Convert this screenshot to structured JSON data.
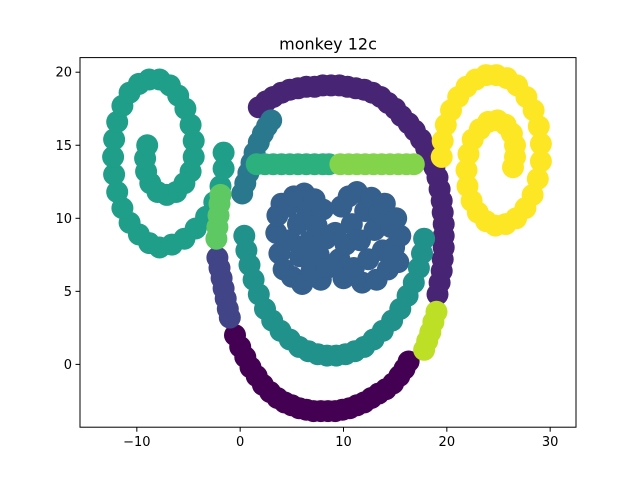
{
  "chart_data": {
    "type": "scatter",
    "title": "monkey 12c",
    "xlabel": "",
    "ylabel": "",
    "xlim": [
      -15.5,
      32.5
    ],
    "ylim": [
      -4.3,
      21.0
    ],
    "xticks": [
      -10,
      0,
      10,
      20,
      30
    ],
    "xtick_labels": [
      "−10",
      "0",
      "10",
      "20",
      "30"
    ],
    "yticks": [
      0,
      5,
      10,
      15,
      20
    ],
    "ytick_labels": [
      "0",
      "5",
      "10",
      "15",
      "20"
    ],
    "grid": false,
    "legend": "none",
    "point_size": 11,
    "series": [
      {
        "color": "#440154",
        "points": [
          [
            -0.5,
            2.0
          ],
          [
            0.0,
            1.2
          ],
          [
            0.5,
            0.5
          ],
          [
            1.0,
            -0.2
          ],
          [
            1.6,
            -0.8
          ],
          [
            2.2,
            -1.4
          ],
          [
            2.9,
            -1.9
          ],
          [
            3.6,
            -2.3
          ],
          [
            4.3,
            -2.6
          ],
          [
            5.0,
            -2.8
          ],
          [
            5.7,
            -3.0
          ],
          [
            6.4,
            -3.1
          ],
          [
            7.1,
            -3.2
          ],
          [
            7.8,
            -3.2
          ],
          [
            8.5,
            -3.2
          ],
          [
            9.2,
            -3.2
          ],
          [
            9.9,
            -3.1
          ],
          [
            10.6,
            -3.0
          ],
          [
            11.3,
            -2.8
          ],
          [
            12.0,
            -2.6
          ],
          [
            12.7,
            -2.3
          ],
          [
            13.4,
            -2.0
          ],
          [
            14.1,
            -1.7
          ],
          [
            14.8,
            -1.3
          ],
          [
            15.4,
            -0.8
          ],
          [
            15.9,
            -0.3
          ],
          [
            16.3,
            0.2
          ]
        ]
      },
      {
        "color": "#482475",
        "points": [
          [
            1.8,
            17.6
          ],
          [
            2.5,
            18.0
          ],
          [
            3.2,
            18.3
          ],
          [
            4.0,
            18.6
          ],
          [
            4.8,
            18.8
          ],
          [
            5.6,
            18.9
          ],
          [
            6.4,
            19.0
          ],
          [
            7.2,
            19.0
          ],
          [
            8.0,
            19.1
          ],
          [
            8.8,
            19.1
          ],
          [
            9.6,
            19.1
          ],
          [
            10.4,
            19.0
          ],
          [
            11.2,
            18.9
          ],
          [
            12.0,
            18.8
          ],
          [
            12.8,
            18.6
          ],
          [
            13.6,
            18.3
          ],
          [
            14.3,
            17.9
          ],
          [
            15.0,
            17.5
          ],
          [
            15.6,
            17.0
          ],
          [
            16.3,
            16.5
          ],
          [
            16.9,
            16.0
          ],
          [
            17.5,
            15.4
          ],
          [
            18.0,
            14.8
          ],
          [
            18.4,
            14.2
          ],
          [
            18.8,
            13.5
          ],
          [
            19.1,
            12.8
          ],
          [
            19.3,
            12.0
          ],
          [
            19.5,
            11.2
          ],
          [
            19.6,
            10.4
          ],
          [
            19.7,
            9.6
          ],
          [
            19.7,
            8.8
          ],
          [
            19.7,
            8.0
          ],
          [
            19.6,
            7.2
          ],
          [
            19.5,
            6.4
          ],
          [
            19.3,
            5.6
          ],
          [
            19.1,
            4.8
          ]
        ]
      },
      {
        "color": "#414487",
        "points": [
          [
            -2.2,
            7.3
          ],
          [
            -2.0,
            6.6
          ],
          [
            -1.8,
            5.9
          ],
          [
            -1.6,
            5.2
          ],
          [
            -1.4,
            4.5
          ],
          [
            -1.2,
            3.8
          ],
          [
            -1.0,
            3.2
          ]
        ]
      },
      {
        "color": "#2a788e",
        "points": [
          [
            0.2,
            11.7
          ],
          [
            0.5,
            12.4
          ],
          [
            0.8,
            13.1
          ],
          [
            1.1,
            13.8
          ],
          [
            1.4,
            14.5
          ],
          [
            1.8,
            15.2
          ],
          [
            2.2,
            15.8
          ],
          [
            2.6,
            16.3
          ],
          [
            3.0,
            16.7
          ]
        ]
      },
      {
        "color": "#355f8d",
        "points": [
          [
            3.5,
            9.0
          ],
          [
            3.6,
            10.2
          ],
          [
            3.8,
            7.6
          ],
          [
            4.0,
            11.0
          ],
          [
            4.2,
            6.5
          ],
          [
            4.6,
            10.8
          ],
          [
            4.8,
            8.5
          ],
          [
            5.0,
            6.0
          ],
          [
            5.2,
            11.5
          ],
          [
            5.6,
            9.6
          ],
          [
            5.8,
            7.4
          ],
          [
            6.0,
            5.5
          ],
          [
            6.2,
            11.7
          ],
          [
            6.5,
            10.6
          ],
          [
            6.7,
            8.4
          ],
          [
            6.9,
            6.4
          ],
          [
            7.2,
            11.3
          ],
          [
            7.4,
            9.5
          ],
          [
            7.6,
            7.5
          ],
          [
            7.8,
            5.8
          ],
          [
            8.0,
            10.6
          ],
          [
            8.3,
            8.6
          ],
          [
            8.4,
            6.6
          ],
          [
            9.2,
            9.0
          ],
          [
            9.6,
            7.2
          ],
          [
            9.8,
            10.8
          ],
          [
            10.0,
            5.9
          ],
          [
            10.2,
            8.2
          ],
          [
            10.5,
            11.5
          ],
          [
            10.8,
            9.6
          ],
          [
            11.0,
            6.6
          ],
          [
            11.3,
            11.8
          ],
          [
            11.6,
            8.5
          ],
          [
            11.8,
            5.6
          ],
          [
            12.1,
            10.5
          ],
          [
            12.4,
            7.2
          ],
          [
            12.7,
            11.4
          ],
          [
            13.0,
            9.2
          ],
          [
            13.2,
            5.8
          ],
          [
            13.5,
            10.4
          ],
          [
            13.8,
            7.8
          ],
          [
            14.0,
            11.0
          ],
          [
            14.3,
            6.5
          ],
          [
            14.6,
            9.4
          ],
          [
            14.9,
            8.0
          ],
          [
            15.1,
            10.0
          ],
          [
            15.3,
            7.0
          ],
          [
            15.5,
            8.8
          ]
        ]
      },
      {
        "color": "#21918c",
        "points": [
          [
            0.4,
            8.8
          ],
          [
            0.6,
            7.8
          ],
          [
            0.9,
            6.8
          ],
          [
            1.3,
            5.8
          ],
          [
            1.8,
            4.8
          ],
          [
            2.4,
            3.8
          ],
          [
            3.1,
            3.0
          ],
          [
            3.9,
            2.3
          ],
          [
            4.8,
            1.7
          ],
          [
            5.7,
            1.2
          ],
          [
            6.6,
            0.9
          ],
          [
            7.5,
            0.7
          ],
          [
            8.4,
            0.6
          ],
          [
            9.3,
            0.6
          ],
          [
            10.2,
            0.7
          ],
          [
            11.1,
            0.9
          ],
          [
            12.0,
            1.2
          ],
          [
            12.9,
            1.7
          ],
          [
            13.8,
            2.3
          ],
          [
            14.7,
            3.0
          ],
          [
            15.5,
            3.8
          ],
          [
            16.2,
            4.7
          ],
          [
            16.8,
            5.6
          ],
          [
            17.3,
            6.6
          ],
          [
            17.6,
            7.6
          ],
          [
            17.8,
            8.6
          ]
        ]
      },
      {
        "color": "#1f9e89",
        "points": [
          [
            -7.8,
            8.0
          ],
          [
            -6.6,
            8.2
          ],
          [
            -5.4,
            8.6
          ],
          [
            -4.3,
            9.3
          ],
          [
            -3.3,
            10.1
          ],
          [
            -2.5,
            11.1
          ],
          [
            -1.9,
            12.2
          ],
          [
            -1.6,
            13.4
          ],
          [
            -1.6,
            14.5
          ],
          [
            -8.8,
            8.3
          ],
          [
            -9.8,
            8.9
          ],
          [
            -10.7,
            9.7
          ],
          [
            -11.4,
            10.7
          ],
          [
            -11.9,
            11.8
          ],
          [
            -12.2,
            13.0
          ],
          [
            -12.3,
            14.2
          ],
          [
            -12.2,
            15.4
          ],
          [
            -11.9,
            16.6
          ],
          [
            -11.4,
            17.7
          ],
          [
            -10.7,
            18.6
          ],
          [
            -9.8,
            19.2
          ],
          [
            -8.8,
            19.5
          ],
          [
            -7.8,
            19.5
          ],
          [
            -6.8,
            19.1
          ],
          [
            -6.0,
            18.4
          ],
          [
            -5.3,
            17.5
          ],
          [
            -4.8,
            16.4
          ],
          [
            -4.5,
            15.3
          ],
          [
            -4.5,
            14.2
          ],
          [
            -4.8,
            13.2
          ],
          [
            -5.4,
            12.4
          ],
          [
            -6.2,
            11.8
          ],
          [
            -7.1,
            11.6
          ],
          [
            -8.0,
            11.8
          ],
          [
            -8.7,
            12.4
          ],
          [
            -9.1,
            13.2
          ],
          [
            -9.2,
            14.1
          ],
          [
            -9.0,
            15.0
          ]
        ]
      },
      {
        "color": "#2cb17e",
        "points": [
          [
            1.6,
            13.7
          ],
          [
            2.4,
            13.7
          ],
          [
            3.2,
            13.7
          ],
          [
            4.0,
            13.7
          ],
          [
            4.8,
            13.7
          ],
          [
            5.6,
            13.7
          ],
          [
            6.4,
            13.7
          ],
          [
            7.2,
            13.7
          ],
          [
            8.0,
            13.7
          ],
          [
            8.6,
            13.7
          ]
        ]
      },
      {
        "color": "#5ec962",
        "points": [
          [
            -2.3,
            8.6
          ],
          [
            -2.2,
            9.4
          ],
          [
            -2.1,
            10.2
          ],
          [
            -2.0,
            11.0
          ],
          [
            -1.9,
            11.6
          ]
        ]
      },
      {
        "color": "#84d44b",
        "points": [
          [
            9.7,
            13.7
          ],
          [
            10.5,
            13.7
          ],
          [
            11.3,
            13.7
          ],
          [
            12.1,
            13.7
          ],
          [
            12.9,
            13.7
          ],
          [
            13.7,
            13.7
          ],
          [
            14.5,
            13.7
          ],
          [
            15.3,
            13.7
          ],
          [
            16.1,
            13.7
          ],
          [
            16.8,
            13.7
          ]
        ]
      },
      {
        "color": "#bddf26",
        "points": [
          [
            19.0,
            3.6
          ],
          [
            18.7,
            2.9
          ],
          [
            18.4,
            2.2
          ],
          [
            18.1,
            1.6
          ],
          [
            17.8,
            1.0
          ]
        ]
      },
      {
        "color": "#fde725",
        "points": [
          [
            19.5,
            14.2
          ],
          [
            19.6,
            15.3
          ],
          [
            19.9,
            16.4
          ],
          [
            20.4,
            17.4
          ],
          [
            21.1,
            18.3
          ],
          [
            21.9,
            19.0
          ],
          [
            22.8,
            19.5
          ],
          [
            23.8,
            19.8
          ],
          [
            24.8,
            19.8
          ],
          [
            25.8,
            19.6
          ],
          [
            26.8,
            19.1
          ],
          [
            27.7,
            18.3
          ],
          [
            28.4,
            17.4
          ],
          [
            28.9,
            16.3
          ],
          [
            29.1,
            15.1
          ],
          [
            29.1,
            13.9
          ],
          [
            28.8,
            12.7
          ],
          [
            28.3,
            11.6
          ],
          [
            27.6,
            10.7
          ],
          [
            26.7,
            10.0
          ],
          [
            25.7,
            9.6
          ],
          [
            24.7,
            9.5
          ],
          [
            23.8,
            9.8
          ],
          [
            23.0,
            10.4
          ],
          [
            22.4,
            11.2
          ],
          [
            22.0,
            12.2
          ],
          [
            21.9,
            13.3
          ],
          [
            22.1,
            14.4
          ],
          [
            22.5,
            15.4
          ],
          [
            23.2,
            16.1
          ],
          [
            24.0,
            16.6
          ],
          [
            24.9,
            16.7
          ],
          [
            25.7,
            16.4
          ],
          [
            26.3,
            15.8
          ],
          [
            26.6,
            15.0
          ],
          [
            26.6,
            14.2
          ],
          [
            26.4,
            13.5
          ]
        ]
      }
    ]
  }
}
